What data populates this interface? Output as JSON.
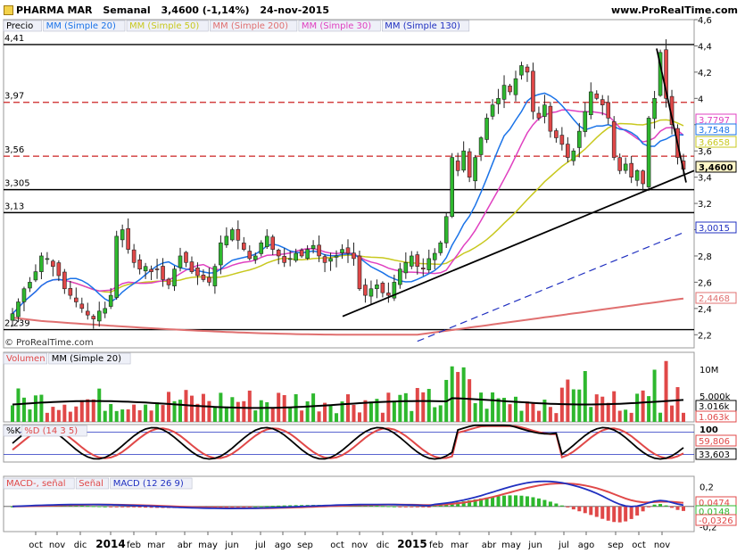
{
  "header": {
    "instrument": "PHARMA MAR",
    "period": "Semanal",
    "price_change": "3,4600 (-1,14%)",
    "date": "24-nov-2015",
    "site": "www.ProRealTime.com"
  },
  "watermark": "© ProRealTime.com",
  "colors": {
    "sma20": "#1a73e8",
    "sma50": "#c8c81e",
    "sma200": "#e07070",
    "sma30": "#e040c0",
    "sma130": "#2030c0",
    "up": "#2eb82e",
    "down": "#e04848",
    "dash_red": "#cc2222"
  },
  "chart_data": [
    {
      "type": "line",
      "panel": "price",
      "legend": [
        "Precio",
        "MM (Simple 20)",
        "MM (Simple 50)",
        "MM (Simple 200)",
        "MM (Simple 30)",
        "MM (Simple 130)"
      ],
      "ylim": [
        2.1,
        4.6
      ],
      "yticks": [
        "4,6",
        "4,4",
        "4,2",
        "4",
        "3,8",
        "3,6",
        "3,4",
        "3,2",
        "3",
        "2,8",
        "2,6",
        "2,4",
        "2,2"
      ],
      "x_labels": [
        "oct",
        "nov",
        "dic",
        "2014",
        "feb",
        "mar",
        "abr",
        "may",
        "jun",
        "jul",
        "ago",
        "sep",
        "oct",
        "nov",
        "dic",
        "2015",
        "feb",
        "mar",
        "abr",
        "may",
        "jun",
        "jul",
        "ago",
        "sep",
        "oct",
        "nov"
      ],
      "level_lines": [
        {
          "label": "4,41",
          "value": 4.41,
          "style": "solid"
        },
        {
          "label": "3,97",
          "value": 3.97,
          "style": "dashed"
        },
        {
          "label": "3,56",
          "value": 3.56,
          "style": "dashed"
        },
        {
          "label": "3,305",
          "value": 3.305,
          "style": "solid"
        },
        {
          "label": "3,13",
          "value": 3.13,
          "style": "solid"
        },
        {
          "label": "2,239",
          "value": 2.239,
          "style": "solid"
        }
      ],
      "value_badges": [
        {
          "label": "3,7797",
          "value": 3.7797,
          "color": "#e040c0"
        },
        {
          "label": "3,7548",
          "value": 3.7548,
          "color": "#1a73e8"
        },
        {
          "label": "3,6658",
          "value": 3.6658,
          "color": "#c8c81e"
        },
        {
          "label": "3,4600",
          "value": 3.46,
          "color": "#000000"
        },
        {
          "label": "3,0015",
          "value": 3.0015,
          "color": "#2030c0"
        },
        {
          "label": "2,4468",
          "value": 2.4468,
          "color": "#e07070"
        }
      ],
      "close": [
        2.36,
        2.45,
        2.55,
        2.6,
        2.68,
        2.8,
        2.78,
        2.72,
        2.65,
        2.55,
        2.5,
        2.45,
        2.4,
        2.35,
        2.32,
        2.38,
        2.4,
        2.5,
        2.95,
        3.0,
        2.85,
        2.75,
        2.7,
        2.72,
        2.68,
        2.7,
        2.62,
        2.58,
        2.7,
        2.8,
        2.75,
        2.68,
        2.65,
        2.62,
        2.6,
        2.72,
        2.9,
        2.95,
        3.0,
        2.92,
        2.85,
        2.78,
        2.8,
        2.9,
        2.95,
        2.85,
        2.8,
        2.75,
        2.78,
        2.82,
        2.8,
        2.85,
        2.88,
        2.8,
        2.75,
        2.78,
        2.8,
        2.85,
        2.82,
        2.78,
        2.55,
        2.5,
        2.55,
        2.58,
        2.52,
        2.5,
        2.6,
        2.7,
        2.75,
        2.8,
        2.72,
        2.7,
        2.78,
        2.82,
        2.9,
        3.1,
        3.55,
        3.45,
        3.6,
        3.4,
        3.55,
        3.7,
        3.85,
        3.95,
        4.0,
        4.1,
        4.05,
        4.15,
        4.25,
        4.2,
        3.9,
        3.85,
        3.95,
        3.75,
        3.7,
        3.65,
        3.55,
        3.6,
        3.75,
        3.9,
        4.05,
        4.0,
        3.95,
        3.85,
        3.55,
        3.45,
        3.5,
        3.4,
        3.45,
        3.35,
        3.85,
        4.0,
        4.35,
        4.0,
        3.8,
        3.55,
        3.46
      ]
    },
    {
      "type": "bar",
      "panel": "volume",
      "legend": [
        "Volumen",
        "MM (Simple 20)"
      ],
      "yticks": [
        "10M",
        "5.000k"
      ],
      "value_badges": [
        {
          "label": "3.016k",
          "value": 3.016,
          "color": "#000000"
        },
        {
          "label": "1.063k",
          "value": 1.063,
          "color": "#e04848"
        }
      ]
    },
    {
      "type": "line",
      "panel": "stochastic",
      "legend": [
        "%K",
        "%D (14 3 5)"
      ],
      "ylim": [
        0,
        100
      ],
      "yticks": [
        "100"
      ],
      "value_badges": [
        {
          "label": "59,806",
          "value": 59.806,
          "color": "#e04848"
        },
        {
          "label": "33,603",
          "value": 33.603,
          "color": "#000000"
        }
      ]
    },
    {
      "type": "line",
      "panel": "macd",
      "legend": [
        "MACD-, señal",
        "Señal",
        "MACD (12 26 9)"
      ],
      "ylim": [
        -0.25,
        0.3
      ],
      "yticks": [
        "0,2",
        "0",
        "-0,2"
      ],
      "value_badges": [
        {
          "label": "0,0474",
          "value": 0.0474,
          "color": "#e04848"
        },
        {
          "label": "0,0148",
          "value": 0.0148,
          "color": "#2eb82e"
        },
        {
          "label": "-0,0326",
          "value": -0.0326,
          "color": "#e04848"
        }
      ]
    }
  ]
}
